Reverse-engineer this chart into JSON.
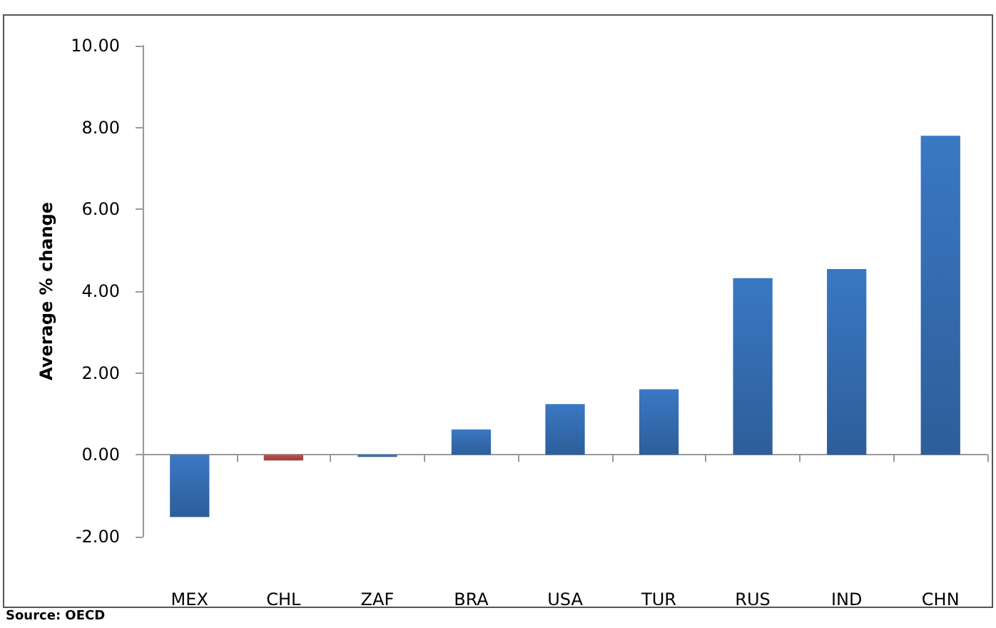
{
  "chart_data": {
    "type": "bar",
    "ylabel": "Average % change",
    "categories": [
      "MEX",
      "CHL",
      "ZAF",
      "BRA",
      "USA",
      "TUR",
      "RUS",
      "IND",
      "CHN"
    ],
    "values": [
      -1.52,
      -0.14,
      -0.05,
      0.62,
      1.24,
      1.6,
      4.32,
      4.54,
      7.8
    ],
    "colors": [
      "#3a78c4",
      "#c0504d",
      "#3a78c4",
      "#3a78c4",
      "#3a78c4",
      "#3a78c4",
      "#3a78c4",
      "#3a78c4",
      "#3a78c4"
    ],
    "ylim": [
      -2,
      10
    ],
    "yticks": [
      {
        "value": -2,
        "label": "-2.00"
      },
      {
        "value": 0,
        "label": "0.00"
      },
      {
        "value": 2,
        "label": "2.00"
      },
      {
        "value": 4,
        "label": "4.00"
      },
      {
        "value": 6,
        "label": "6.00"
      },
      {
        "value": 8,
        "label": "8.00"
      },
      {
        "value": 10,
        "label": "10.00"
      }
    ],
    "annotations": [
      "Source: OECD"
    ]
  }
}
